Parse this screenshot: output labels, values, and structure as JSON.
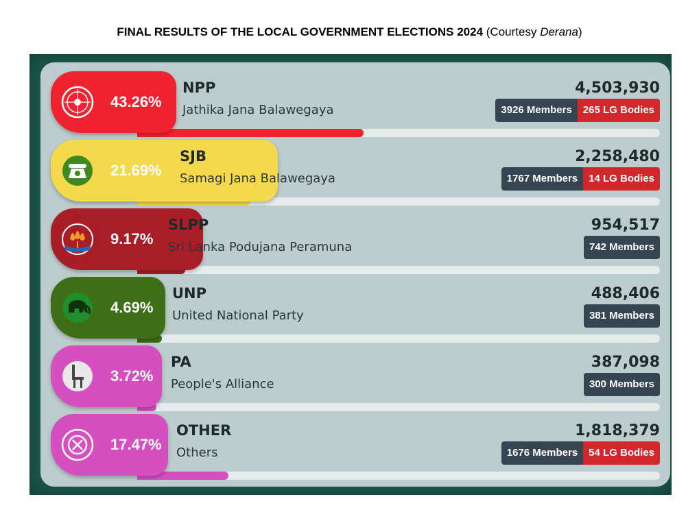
{
  "header": {
    "title_bold": "FINAL RESULTS OF THE LOCAL GOVERNMENT ELECTIONS 2024",
    "title_open": " (Courtesy ",
    "title_source": "Derana",
    "title_close": ")"
  },
  "colors": {
    "frame": "#1b5a4e",
    "panel": "#bdcccc",
    "members_tag": "#374552",
    "bodies_tag": "#d3282b"
  },
  "chart_data": {
    "type": "bar",
    "title": "FINAL RESULTS OF THE LOCAL GOVERNMENT ELECTIONS 2024",
    "categories": [
      "NPP",
      "SJB",
      "SLPP",
      "UNP",
      "PA",
      "OTHER"
    ],
    "series": [
      {
        "values": [
          43.26,
          21.69,
          9.17,
          4.69,
          3.72,
          17.47
        ]
      }
    ],
    "ylim": [
      0,
      100
    ],
    "parties": [
      {
        "abbr": "NPP",
        "name": "Jathika Jana Balawegaya",
        "pct": "43.26%",
        "pct_value": 43.26,
        "votes": "4,503,930",
        "members": "3926 Members",
        "bodies": "265 LG Bodies",
        "color": "#f0222f",
        "icon": "compass-icon"
      },
      {
        "abbr": "SJB",
        "name": "Samagi Jana Balawegaya",
        "pct": "21.69%",
        "pct_value": 21.69,
        "votes": "2,258,480",
        "members": "1767 Members",
        "bodies": "14 LG Bodies",
        "color": "#f5d94c",
        "icon": "telephone-icon"
      },
      {
        "abbr": "SLPP",
        "name": "Sri Lanka Podujana Peramuna",
        "pct": "9.17%",
        "pct_value": 9.17,
        "votes": "954,517",
        "members": "742 Members",
        "bodies": "",
        "color": "#a81d26",
        "icon": "lotus-bud-icon"
      },
      {
        "abbr": "UNP",
        "name": "United National Party",
        "pct": "4.69%",
        "pct_value": 4.69,
        "votes": "488,406",
        "members": "381 Members",
        "bodies": "",
        "color": "#3f6e18",
        "icon": "elephant-icon"
      },
      {
        "abbr": "PA",
        "name": "People's Alliance",
        "pct": "3.72%",
        "pct_value": 3.72,
        "votes": "387,098",
        "members": "300 Members",
        "bodies": "",
        "color": "#d54fc0",
        "icon": "chair-icon"
      },
      {
        "abbr": "OTHER",
        "name": "Others",
        "pct": "17.47%",
        "pct_value": 17.47,
        "votes": "1,818,379",
        "members": "1676 Members",
        "bodies": "54 LG Bodies",
        "color": "#d54fc0",
        "icon": "cross-ballot-icon"
      }
    ]
  }
}
